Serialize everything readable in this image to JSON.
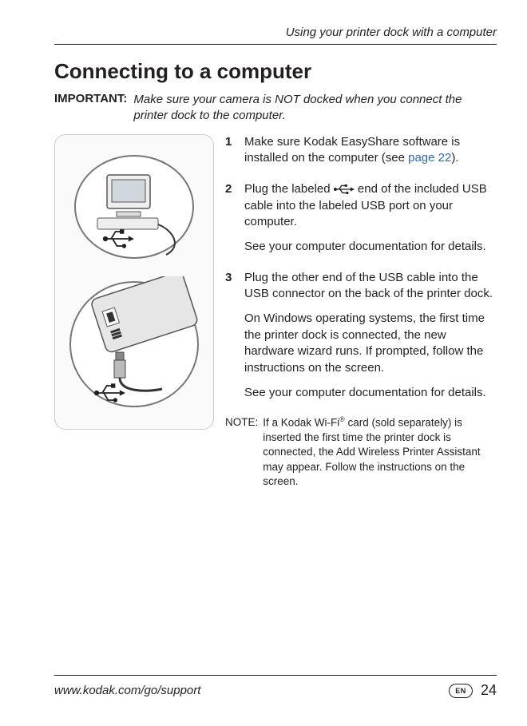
{
  "colors": {
    "text": "#231f20",
    "link": "#2a6ab5",
    "rule": "#231f20",
    "illus_bg": "#fafafa",
    "illus_border": "#cccccc",
    "background": "#ffffff"
  },
  "typography": {
    "body_family": "Verdana, Geneva, sans-serif",
    "body_size_pt": 11,
    "title_size_pt": 20,
    "note_size_pt": 10
  },
  "header": {
    "running_head": "Using your printer dock with a computer"
  },
  "section": {
    "title": "Connecting to a computer",
    "important_label": "IMPORTANT:",
    "important_text": "Make sure your camera is NOT docked when you connect the printer dock to the computer."
  },
  "steps": [
    {
      "num": "1",
      "paragraphs": [
        {
          "fragments": [
            {
              "t": "Make sure Kodak EasyShare software is installed on the computer (see "
            },
            {
              "t": "page 22",
              "link": true
            },
            {
              "t": ")."
            }
          ]
        }
      ]
    },
    {
      "num": "2",
      "paragraphs": [
        {
          "fragments": [
            {
              "t": "Plug the labeled "
            },
            {
              "t": "USB_ICON",
              "usb": true
            },
            {
              "t": " end of the included USB cable into the labeled USB port on your computer."
            }
          ]
        },
        {
          "fragments": [
            {
              "t": "See your computer documentation for details."
            }
          ]
        }
      ]
    },
    {
      "num": "3",
      "paragraphs": [
        {
          "fragments": [
            {
              "t": "Plug the other end of the USB cable into the USB connector on the back of the printer dock."
            }
          ]
        },
        {
          "fragments": [
            {
              "t": "On Windows operating systems, the first time the printer dock is connected, the new hardware wizard runs. If prompted, follow the instructions on the screen."
            }
          ]
        },
        {
          "fragments": [
            {
              "t": "See your computer documentation for details."
            }
          ]
        }
      ]
    }
  ],
  "note": {
    "label": "NOTE:",
    "fragments": [
      {
        "t": "If a Kodak Wi-Fi"
      },
      {
        "t": "®",
        "reg": true
      },
      {
        "t": " card (sold separately) is inserted the first time the printer dock is connected, the Add Wireless Printer Assistant may appear. Follow the instructions on the screen."
      }
    ]
  },
  "footer": {
    "url": "www.kodak.com/go/support",
    "lang_badge": "EN",
    "page_number": "24"
  },
  "illustration": {
    "description": "Two callout bubbles: top shows a desktop computer with a USB cable and USB trident symbol; bottom shows a close-up of the printer dock rear USB port with cable being inserted and USB trident symbol.",
    "icons": [
      "computer-icon",
      "printer-dock-icon",
      "usb-trident-icon"
    ]
  }
}
